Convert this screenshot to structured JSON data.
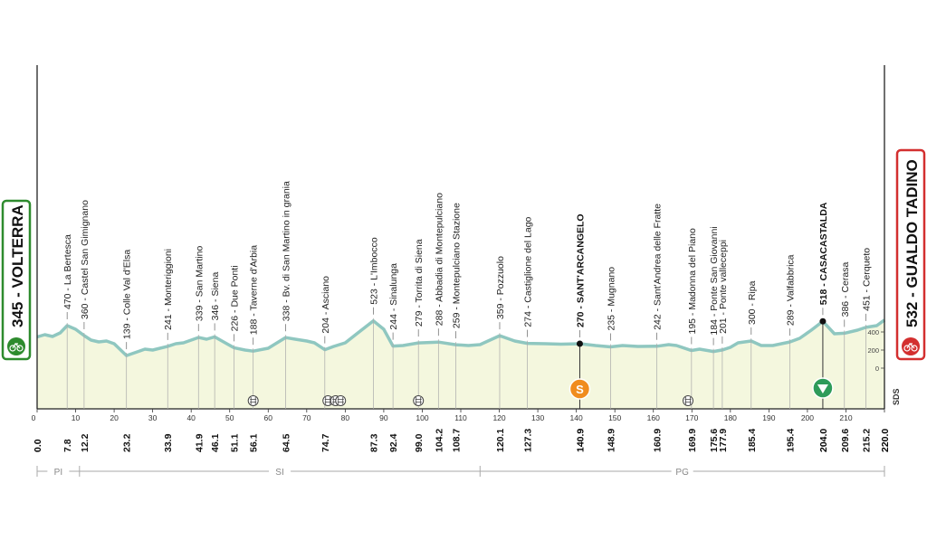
{
  "chart_data": {
    "type": "area",
    "distance_range": [
      0,
      220
    ],
    "altitude_range": [
      0,
      500
    ],
    "x_ticks": [
      0,
      10,
      20,
      30,
      40,
      50,
      60,
      70,
      80,
      90,
      100,
      110,
      120,
      130,
      140,
      150,
      160,
      170,
      180,
      190,
      200,
      210,
      220
    ],
    "y_ticks": [
      0,
      200,
      400
    ],
    "start": {
      "label": "345 - VOLTERRA",
      "color": "#2e8b2e"
    },
    "finish": {
      "label": "532 - GUALDO TADINO",
      "color": "#d32f2f"
    },
    "side_label": "SDS",
    "profile": [
      [
        0,
        345
      ],
      [
        2,
        370
      ],
      [
        4,
        350
      ],
      [
        6,
        390
      ],
      [
        7.8,
        470
      ],
      [
        10,
        430
      ],
      [
        12.2,
        360
      ],
      [
        14,
        310
      ],
      [
        16,
        290
      ],
      [
        18,
        300
      ],
      [
        20,
        270
      ],
      [
        23.2,
        139
      ],
      [
        26,
        180
      ],
      [
        28,
        210
      ],
      [
        30,
        200
      ],
      [
        33.9,
        241
      ],
      [
        36,
        270
      ],
      [
        38,
        280
      ],
      [
        41.9,
        339
      ],
      [
        44,
        320
      ],
      [
        46.1,
        346
      ],
      [
        48,
        300
      ],
      [
        51.1,
        226
      ],
      [
        54,
        200
      ],
      [
        56.1,
        188
      ],
      [
        60,
        220
      ],
      [
        64.5,
        338
      ],
      [
        67,
        320
      ],
      [
        70,
        300
      ],
      [
        72,
        280
      ],
      [
        74.7,
        204
      ],
      [
        77,
        240
      ],
      [
        80,
        280
      ],
      [
        83,
        380
      ],
      [
        87.3,
        523
      ],
      [
        90,
        430
      ],
      [
        92.4,
        244
      ],
      [
        95,
        250
      ],
      [
        99,
        279
      ],
      [
        104.2,
        288
      ],
      [
        108.7,
        259
      ],
      [
        112,
        250
      ],
      [
        115,
        260
      ],
      [
        120.1,
        359
      ],
      [
        124,
        300
      ],
      [
        127.3,
        274
      ],
      [
        132,
        270
      ],
      [
        136,
        265
      ],
      [
        140.9,
        270
      ],
      [
        145,
        250
      ],
      [
        148.9,
        235
      ],
      [
        152,
        250
      ],
      [
        156,
        240
      ],
      [
        160.9,
        242
      ],
      [
        164,
        260
      ],
      [
        166,
        250
      ],
      [
        169.9,
        195
      ],
      [
        172,
        210
      ],
      [
        175.6,
        184
      ],
      [
        177.9,
        201
      ],
      [
        180,
        230
      ],
      [
        182,
        280
      ],
      [
        185.4,
        300
      ],
      [
        188,
        250
      ],
      [
        191,
        250
      ],
      [
        195.4,
        289
      ],
      [
        198,
        330
      ],
      [
        201,
        420
      ],
      [
        204,
        518
      ],
      [
        207,
        380
      ],
      [
        209.6,
        386
      ],
      [
        213,
        420
      ],
      [
        215.2,
        451
      ],
      [
        218,
        470
      ],
      [
        220,
        532
      ]
    ],
    "waypoints": [
      {
        "km": "7.8",
        "label": "470 - La Bertesca",
        "key": false
      },
      {
        "km": "12.2",
        "label": "360 - Castel San Gimignano",
        "key": false
      },
      {
        "km": "23.2",
        "label": "139 - Colle Val d'Elsa",
        "key": false
      },
      {
        "km": "33.9",
        "label": "241 - Monteriggioni",
        "key": false
      },
      {
        "km": "41.9",
        "label": "339 - San Martino",
        "key": false
      },
      {
        "km": "46.1",
        "label": "346 - Siena",
        "key": false
      },
      {
        "km": "51.1",
        "label": "226 - Due Ponti",
        "key": false
      },
      {
        "km": "56.1",
        "label": "188 - Taverne d'Arbia",
        "key": false
      },
      {
        "km": "64.5",
        "label": "338 - Bv. di San Martino in grania",
        "key": false
      },
      {
        "km": "74.7",
        "label": "204 - Asciano",
        "key": false
      },
      {
        "km": "87.3",
        "label": "523 - L'Imbocco",
        "key": false
      },
      {
        "km": "92.4",
        "label": "244 - Sinalunga",
        "key": false
      },
      {
        "km": "99.0",
        "label": "279 - Torrita di Siena",
        "key": false
      },
      {
        "km": "104.2",
        "label": "288 - Abbadia di Montepulciano",
        "key": false
      },
      {
        "km": "108.7",
        "label": "259 - Montepulciano Stazione",
        "key": false
      },
      {
        "km": "120.1",
        "label": "359 - Pozzuolo",
        "key": false
      },
      {
        "km": "127.3",
        "label": "274 - Castiglione del Lago",
        "key": false
      },
      {
        "km": "140.9",
        "label": "270 - SANT'ARCANGELO",
        "key": true
      },
      {
        "km": "148.9",
        "label": "235 - Mugnano",
        "key": false
      },
      {
        "km": "160.9",
        "label": "242 - Sant'Andrea delle Fratte",
        "key": false
      },
      {
        "km": "169.9",
        "label": "195 - Madonna del Piano",
        "key": false
      },
      {
        "km": "175.6",
        "label": "184 - Ponte San Giovanni",
        "key": false
      },
      {
        "km": "177.9",
        "label": "201 - Ponte valleceppi",
        "key": false
      },
      {
        "km": "185.4",
        "label": "300 - Ripa",
        "key": false
      },
      {
        "km": "195.4",
        "label": "289 - Valfabbrica",
        "key": false
      },
      {
        "km": "204.0",
        "label": "518 - CASACASTALDA",
        "key": true
      },
      {
        "km": "209.6",
        "label": "386 - Cerasa",
        "key": false
      },
      {
        "km": "215.2",
        "label": "451 - Cerqueto",
        "key": false
      }
    ],
    "km_extremes": [
      "0.0",
      "220.0"
    ],
    "sprint": {
      "km": 140.9,
      "letter": "S",
      "color": "#f08c1e"
    },
    "kom": {
      "km": 204.0,
      "color": "#2e9b5a"
    },
    "level_crossings_km": [
      56.1,
      75.5,
      77.5,
      78.8,
      99.0,
      169.0
    ],
    "regions": [
      {
        "label": "PI",
        "from": 0,
        "to": 11
      },
      {
        "label": "SI",
        "from": 11,
        "to": 115
      },
      {
        "label": "PG",
        "from": 115,
        "to": 220
      }
    ]
  }
}
